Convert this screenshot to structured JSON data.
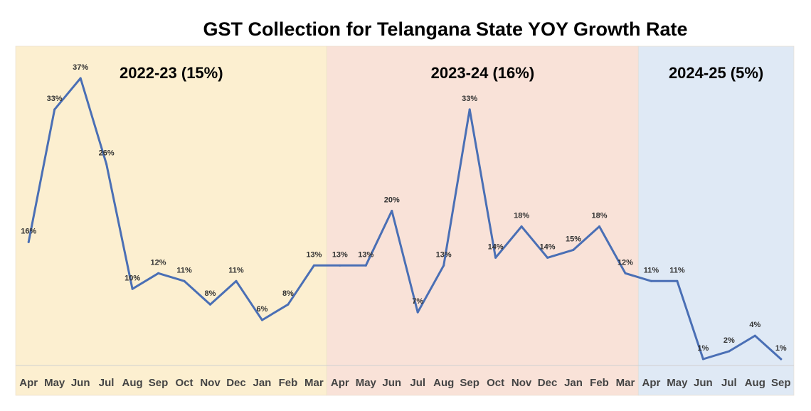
{
  "colors": {
    "line": "#4a6fb5",
    "period_fills": [
      "#fcefd0",
      "#f9e2d8",
      "#dfe9f5"
    ],
    "axis": "#d0d0d0"
  },
  "chart_data": {
    "type": "line",
    "title": "GST Collection for Telangana State  YOY Growth Rate",
    "xlabel": "",
    "ylabel": "",
    "ylim": [
      -3,
      40
    ],
    "grid": false,
    "legend": "none",
    "categories": [
      "Apr",
      "May",
      "Jun",
      "Jul",
      "Aug",
      "Sep",
      "Oct",
      "Nov",
      "Dec",
      "Jan",
      "Feb",
      "Mar",
      "Apr",
      "May",
      "Jun",
      "Jul",
      "Aug",
      "Sep",
      "Oct",
      "Nov",
      "Dec",
      "Jan",
      "Feb",
      "Mar",
      "Apr",
      "May",
      "Jun",
      "Jul",
      "Aug",
      "Sep"
    ],
    "series": [
      {
        "values": [
          16,
          33,
          37,
          26,
          10,
          12,
          11,
          8,
          11,
          6,
          8,
          13,
          13,
          13,
          20,
          7,
          13,
          33,
          14,
          18,
          14,
          15,
          18,
          12,
          11,
          11,
          1,
          2,
          4,
          1
        ],
        "labels": [
          "16%",
          "33%",
          "37%",
          "26%",
          "10%",
          "12%",
          "11%",
          "8%",
          "11%",
          "6%",
          "8%",
          "13%",
          "13%",
          "13%",
          "20%",
          "7%",
          "13%",
          "33%",
          "14%",
          "18%",
          "14%",
          "15%",
          "18%",
          "12%",
          "11%",
          "11%",
          "1%",
          "2%",
          "4%",
          "1%"
        ]
      }
    ],
    "periods": [
      {
        "label": "2022-23 (15%)",
        "start": 0,
        "end": 11
      },
      {
        "label": "2023-24 (16%)",
        "start": 12,
        "end": 23
      },
      {
        "label": "2024-25 (5%)",
        "start": 24,
        "end": 29
      }
    ]
  }
}
